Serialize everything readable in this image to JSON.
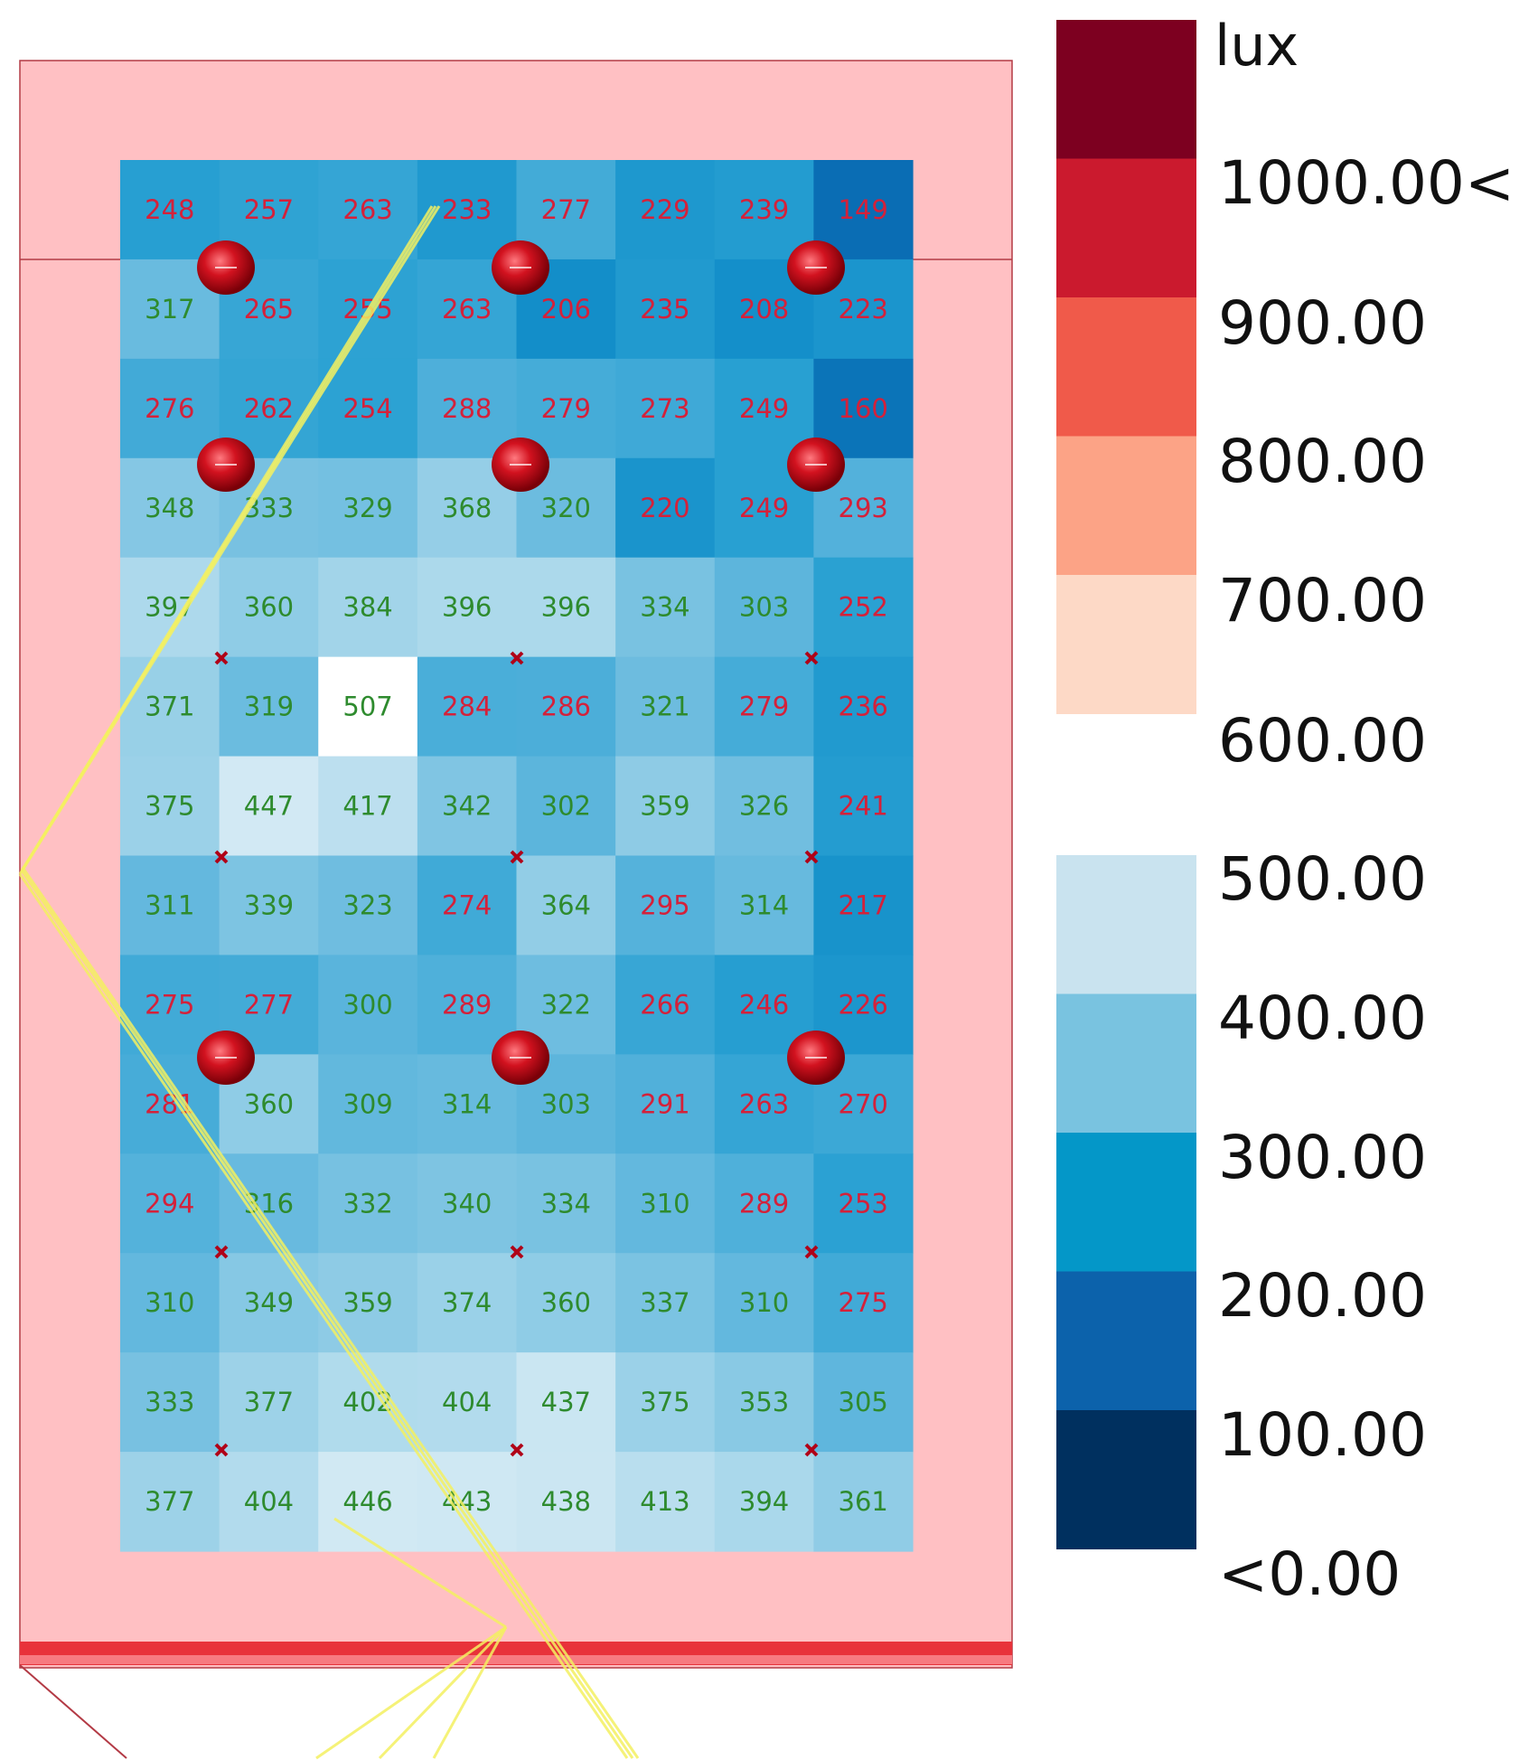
{
  "chart_data": {
    "type": "heatmap",
    "title": "",
    "unit": "lux",
    "rows": 14,
    "cols": 8,
    "values": [
      [
        248,
        257,
        263,
        233,
        277,
        229,
        239,
        149
      ],
      [
        317,
        265,
        255,
        263,
        206,
        235,
        208,
        223
      ],
      [
        276,
        262,
        254,
        288,
        279,
        273,
        249,
        160
      ],
      [
        348,
        333,
        329,
        368,
        320,
        220,
        249,
        293
      ],
      [
        397,
        360,
        384,
        396,
        396,
        334,
        303,
        252
      ],
      [
        371,
        319,
        507,
        284,
        286,
        321,
        279,
        236
      ],
      [
        375,
        447,
        417,
        342,
        302,
        359,
        326,
        241
      ],
      [
        311,
        339,
        323,
        274,
        364,
        295,
        314,
        217
      ],
      [
        275,
        277,
        300,
        289,
        322,
        266,
        246,
        226
      ],
      [
        281,
        360,
        309,
        314,
        303,
        291,
        263,
        270
      ],
      [
        294,
        316,
        332,
        340,
        334,
        310,
        289,
        253
      ],
      [
        310,
        349,
        359,
        374,
        360,
        337,
        310,
        275
      ],
      [
        333,
        377,
        402,
        404,
        437,
        375,
        353,
        305
      ],
      [
        377,
        404,
        446,
        443,
        438,
        413,
        394,
        361
      ]
    ],
    "legend": {
      "title": "lux",
      "labels": [
        "1000.00<",
        "900.00",
        "800.00",
        "700.00",
        "600.00",
        "500.00",
        "400.00",
        "300.00",
        "200.00",
        "100.00",
        "<0.00"
      ],
      "upper_colors": [
        "#7d0020",
        "#cb1a2e",
        "#f05a4a",
        "#fca386",
        "#fdd9c6"
      ],
      "lower_colors": [
        "#c9e3ef",
        "#79c3e0",
        "#0497c8",
        "#0c62ab",
        "#00305f"
      ]
    },
    "colors": {
      "room_fill": "#ffc0c3",
      "room_border": "#b33a45",
      "luminaire": "#d2121f",
      "marker": "#b00018",
      "label_red": "#d4213a",
      "label_green": "#2e8b2e",
      "light_ray": "#f3f060"
    },
    "luminaires": {
      "rows": 3,
      "cols": 3
    },
    "markers": {
      "rows": 4,
      "cols": 3
    }
  }
}
